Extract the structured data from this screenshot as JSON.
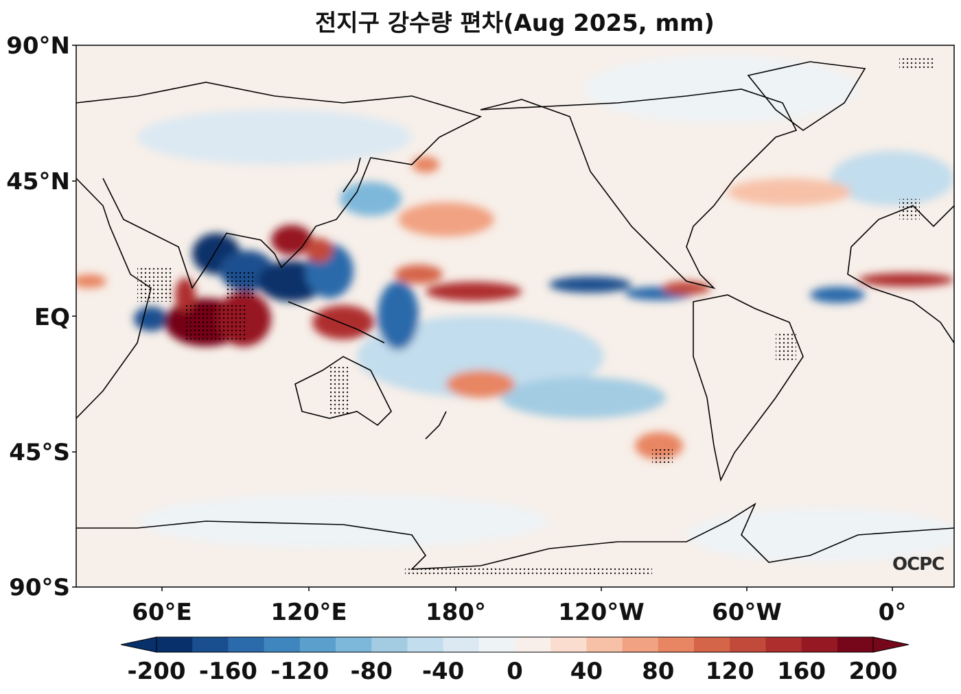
{
  "title": "전지구 강수량 편차(Aug 2025, mm)",
  "logo_text": "OCPC",
  "lat_labels": [
    "90°N",
    "45°N",
    "EQ",
    "45°S",
    "90°S"
  ],
  "lon_labels": [
    "60°E",
    "120°E",
    "180°",
    "120°W",
    "60°W",
    "0°"
  ],
  "colorbar": {
    "tick_labels": [
      "-200",
      "-160",
      "-120",
      "-80",
      "-40",
      "0",
      "40",
      "80",
      "120",
      "160",
      "200"
    ],
    "levels": [
      -200,
      -180,
      -160,
      -140,
      -120,
      -100,
      -80,
      -60,
      -40,
      -20,
      0,
      20,
      40,
      60,
      80,
      100,
      120,
      140,
      160,
      180,
      200
    ],
    "colors": [
      "#08306b",
      "#1a4f8f",
      "#2b6aab",
      "#3f86bf",
      "#5ba0cc",
      "#7db7da",
      "#a3cce3",
      "#c2dded",
      "#dce9f3",
      "#eef3f6",
      "#f8efea",
      "#fbddd0",
      "#f7c1a8",
      "#f1a282",
      "#e88562",
      "#d56549",
      "#c24a3b",
      "#ae2e2e",
      "#961822",
      "#760619"
    ]
  },
  "colors": {
    "land_outline": "#000000",
    "background": "#f7efe9"
  }
}
